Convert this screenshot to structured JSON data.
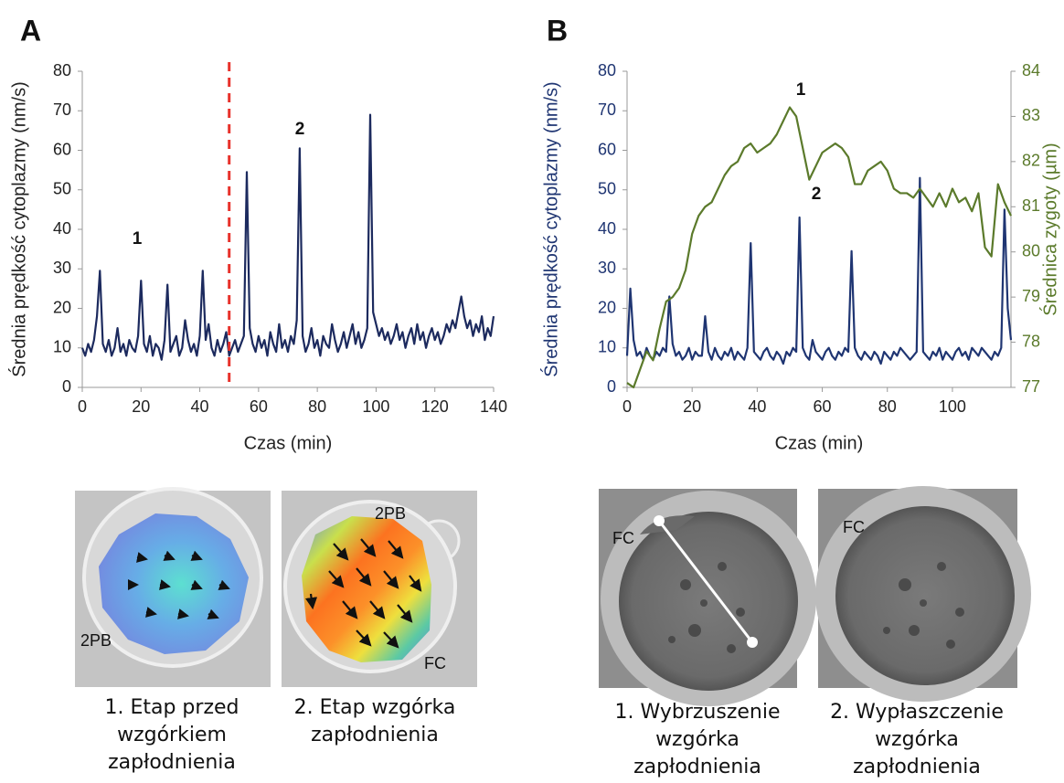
{
  "chart_data": [
    {
      "type": "line",
      "panel": "A",
      "xlabel": "Czas (min)",
      "ylabel": "Średnia prędkość cytoplazmy (nm/s)",
      "xlim": [
        0,
        140
      ],
      "xticks": [
        0,
        20,
        40,
        60,
        80,
        100,
        120,
        140
      ],
      "ylim": [
        0,
        80
      ],
      "yticks": [
        0,
        10,
        20,
        30,
        40,
        50,
        60,
        70,
        80
      ],
      "vline": {
        "x": 50,
        "color": "#e8322b"
      },
      "annotations": [
        "1",
        "2"
      ],
      "series": [
        {
          "color": "#1c2a5e",
          "x": [
            0,
            1,
            2,
            3,
            4,
            5,
            6,
            7,
            8,
            9,
            10,
            11,
            12,
            13,
            14,
            15,
            16,
            17,
            18,
            19,
            20,
            21,
            22,
            23,
            24,
            25,
            26,
            27,
            28,
            29,
            30,
            31,
            32,
            33,
            34,
            35,
            36,
            37,
            38,
            39,
            40,
            41,
            42,
            43,
            44,
            45,
            46,
            47,
            48,
            49,
            50,
            51,
            52,
            53,
            54,
            55,
            56,
            57,
            58,
            59,
            60,
            61,
            62,
            63,
            64,
            65,
            66,
            67,
            68,
            69,
            70,
            71,
            72,
            73,
            74,
            75,
            76,
            77,
            78,
            79,
            80,
            81,
            82,
            83,
            84,
            85,
            86,
            87,
            88,
            89,
            90,
            91,
            92,
            93,
            94,
            95,
            96,
            97,
            98,
            99,
            100,
            101,
            102,
            103,
            104,
            105,
            106,
            107,
            108,
            109,
            110,
            111,
            112,
            113,
            114,
            115,
            116,
            117,
            118,
            119,
            120,
            121,
            122,
            123,
            124,
            125,
            126,
            127,
            128,
            129,
            130,
            131,
            132,
            133,
            134,
            135,
            136,
            137,
            138,
            139,
            140
          ],
          "values": [
            10,
            8,
            11,
            9,
            12,
            18,
            29.5,
            11,
            9,
            12,
            8,
            10,
            15,
            9,
            11,
            8,
            12,
            10,
            9,
            13,
            27,
            11,
            9,
            13,
            8,
            11,
            10,
            7,
            12,
            26,
            9,
            11,
            13,
            8,
            10,
            17,
            12,
            9,
            11,
            8,
            13,
            29.5,
            12,
            16,
            10,
            8,
            12,
            9,
            11,
            14,
            8,
            10,
            12,
            9,
            11,
            13,
            54.5,
            15,
            11,
            9,
            13,
            10,
            12,
            8,
            14,
            11,
            9,
            16,
            10,
            12,
            9,
            13,
            11,
            17,
            60.5,
            13,
            9,
            11,
            15,
            10,
            12,
            8,
            13,
            11,
            10,
            16,
            12,
            9,
            11,
            14,
            10,
            13,
            16,
            11,
            14,
            10,
            12,
            15,
            69,
            19,
            16,
            13,
            15,
            12,
            14,
            11,
            13,
            16,
            12,
            14,
            10,
            13,
            15,
            11,
            16,
            12,
            14,
            10,
            13,
            15,
            12,
            14,
            11,
            13,
            16,
            14,
            17,
            15,
            19,
            23,
            18,
            15,
            17,
            13,
            16,
            14,
            18,
            12,
            15,
            13,
            18
          ]
        }
      ]
    },
    {
      "type": "line",
      "panel": "B",
      "xlabel": "Czas (min)",
      "ylabel": "Średnia prędkość cytoplazmy (nm/s)",
      "y2label": "Średnica zygoty (µm)",
      "xlim": [
        0,
        118
      ],
      "xticks": [
        0,
        20,
        40,
        60,
        80,
        100
      ],
      "ylim": [
        0,
        80
      ],
      "yticks": [
        0,
        10,
        20,
        30,
        40,
        50,
        60,
        70,
        80
      ],
      "y2lim": [
        77,
        84
      ],
      "y2ticks": [
        77,
        78,
        79,
        80,
        81,
        82,
        83,
        84
      ],
      "annotations": [
        "1",
        "2"
      ],
      "series": [
        {
          "color": "#1f3572",
          "x": [
            0,
            1,
            2,
            3,
            4,
            5,
            6,
            7,
            8,
            9,
            10,
            11,
            12,
            13,
            14,
            15,
            16,
            17,
            18,
            19,
            20,
            21,
            22,
            23,
            24,
            25,
            26,
            27,
            28,
            29,
            30,
            31,
            32,
            33,
            34,
            35,
            36,
            37,
            38,
            39,
            40,
            41,
            42,
            43,
            44,
            45,
            46,
            47,
            48,
            49,
            50,
            51,
            52,
            53,
            54,
            55,
            56,
            57,
            58,
            59,
            60,
            61,
            62,
            63,
            64,
            65,
            66,
            67,
            68,
            69,
            70,
            71,
            72,
            73,
            74,
            75,
            76,
            77,
            78,
            79,
            80,
            81,
            82,
            83,
            84,
            85,
            86,
            87,
            88,
            89,
            90,
            91,
            92,
            93,
            94,
            95,
            96,
            97,
            98,
            99,
            100,
            101,
            102,
            103,
            104,
            105,
            106,
            107,
            108,
            109,
            110,
            111,
            112,
            113,
            114,
            115,
            116,
            117,
            118
          ],
          "values": [
            8,
            25,
            12,
            8,
            9,
            7,
            10,
            8,
            7,
            9,
            8,
            10,
            9,
            23,
            11,
            8,
            9,
            7,
            8,
            10,
            7,
            9,
            8,
            8,
            18,
            9,
            7,
            10,
            8,
            7,
            9,
            8,
            10,
            7,
            9,
            8,
            7,
            10,
            36.5,
            9,
            8,
            7,
            9,
            10,
            8,
            7,
            9,
            8,
            6,
            9,
            8,
            10,
            9,
            43,
            10,
            8,
            7,
            12,
            9,
            8,
            7,
            9,
            10,
            8,
            7,
            9,
            8,
            10,
            9,
            34.5,
            10,
            8,
            7,
            9,
            8,
            7,
            9,
            8,
            6,
            9,
            8,
            7,
            9,
            8,
            10,
            9,
            8,
            7,
            8,
            9,
            53,
            9,
            8,
            7,
            9,
            8,
            10,
            7,
            9,
            8,
            7,
            9,
            10,
            8,
            9,
            7,
            10,
            9,
            8,
            10,
            9,
            8,
            7,
            9,
            8,
            10,
            45,
            20,
            12
          ]
        },
        {
          "color": "#5b7a2b",
          "axis": "y2",
          "x": [
            0,
            2,
            4,
            6,
            8,
            10,
            12,
            14,
            16,
            18,
            20,
            22,
            24,
            26,
            28,
            30,
            32,
            34,
            36,
            38,
            40,
            42,
            44,
            46,
            48,
            50,
            52,
            54,
            56,
            58,
            60,
            62,
            64,
            66,
            68,
            70,
            72,
            74,
            76,
            78,
            80,
            82,
            84,
            86,
            88,
            90,
            92,
            94,
            96,
            98,
            100,
            102,
            104,
            106,
            108,
            110,
            112,
            114,
            116,
            118
          ],
          "values": [
            77.1,
            77.0,
            77.4,
            77.8,
            77.6,
            78.3,
            78.9,
            79.0,
            79.2,
            79.6,
            80.4,
            80.8,
            81.0,
            81.1,
            81.4,
            81.7,
            81.9,
            82.0,
            82.3,
            82.4,
            82.2,
            82.3,
            82.4,
            82.6,
            82.9,
            83.2,
            83.0,
            82.3,
            81.6,
            81.9,
            82.2,
            82.3,
            82.4,
            82.3,
            82.1,
            81.5,
            81.5,
            81.8,
            81.9,
            82.0,
            81.8,
            81.4,
            81.3,
            81.3,
            81.2,
            81.4,
            81.2,
            81.0,
            81.3,
            81.0,
            81.4,
            81.1,
            81.2,
            80.9,
            81.3,
            80.1,
            79.9,
            81.5,
            81.1,
            80.8
          ]
        }
      ]
    }
  ],
  "images": [
    {
      "caption": "1. Etap przed wzgórkiem zapłodnienia",
      "labels": [
        "2PB"
      ]
    },
    {
      "caption": "2. Etap wzgórka zapłodnienia",
      "labels": [
        "2PB",
        "FC"
      ]
    },
    {
      "caption": "1. Wybrzuszenie wzgórka zapłodnienia",
      "labels": [
        "FC"
      ]
    },
    {
      "caption": "2. Wypłaszczenie wzgórka zapłodnienia",
      "labels": [
        "FC"
      ]
    }
  ]
}
